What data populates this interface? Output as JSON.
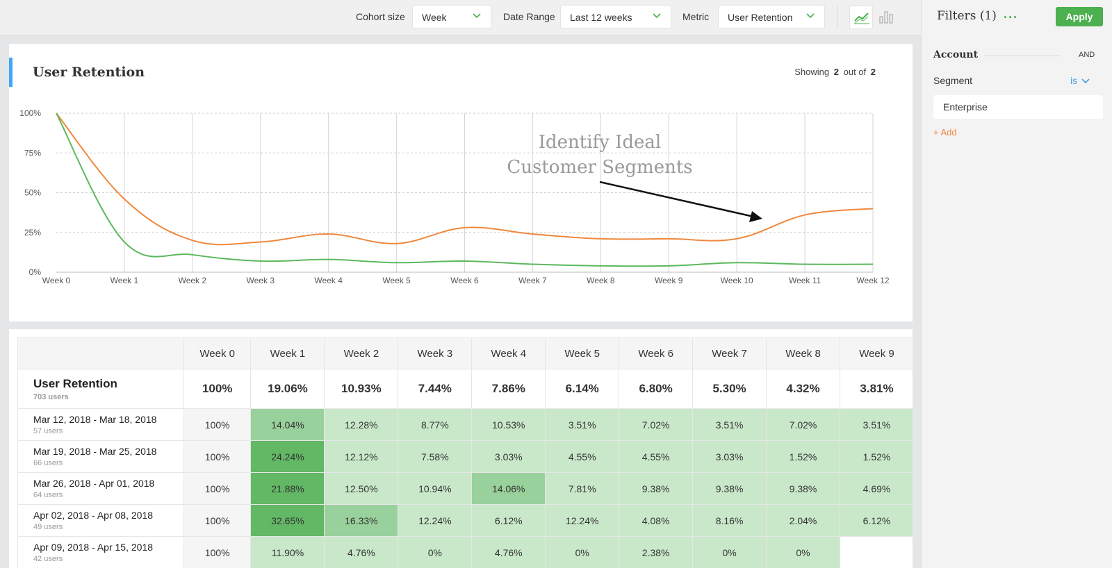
{
  "toolbar": {
    "cohort_label": "Cohort size",
    "cohort_value": "Week",
    "date_label": "Date Range",
    "date_value": "Last 12 weeks",
    "metric_label": "Metric",
    "metric_value": "User Retention",
    "accent_color": "#4caf50"
  },
  "filters": {
    "title": "Filters (1)",
    "more": "...",
    "apply": "Apply",
    "group": "Account",
    "conjunction": "AND",
    "field": "Segment",
    "operator": "is",
    "value": "Enterprise",
    "add": "+ Add"
  },
  "chart": {
    "title": "User Retention",
    "showing_prefix": "Showing",
    "showing_count": "2",
    "showing_mid": "out of",
    "showing_total": "2",
    "annotation_line1": "Identify Ideal",
    "annotation_line2": "Customer Segments"
  },
  "chart_data": {
    "type": "line",
    "categories": [
      "Week 0",
      "Week 1",
      "Week 2",
      "Week 3",
      "Week 4",
      "Week 5",
      "Week 6",
      "Week 7",
      "Week 8",
      "Week 9",
      "Week 10",
      "Week 11",
      "Week 12"
    ],
    "ylim": [
      0,
      100
    ],
    "yticks": [
      "0%",
      "25%",
      "50%",
      "75%",
      "100%"
    ],
    "grid": true,
    "series": [
      {
        "color": "#f0883e",
        "values": [
          100,
          46,
          20,
          19,
          24,
          18,
          28,
          24,
          21,
          21,
          21,
          36,
          40
        ]
      },
      {
        "color": "#5cb85c",
        "values": [
          100,
          19,
          11,
          7,
          8,
          6,
          7,
          5,
          4,
          4,
          6,
          5,
          5
        ]
      }
    ]
  },
  "table": {
    "headers": [
      "Week 0",
      "Week 1",
      "Week 2",
      "Week 3",
      "Week 4",
      "Week 5",
      "Week 6",
      "Week 7",
      "Week 8",
      "Week 9"
    ],
    "summary": {
      "name": "User Retention",
      "users": "703 users",
      "values": [
        "100%",
        "19.06%",
        "10.93%",
        "7.44%",
        "7.86%",
        "6.14%",
        "6.80%",
        "5.30%",
        "4.32%",
        "3.81%"
      ]
    },
    "rows": [
      {
        "name": "Mar 12, 2018 - Mar 18, 2018",
        "users": "57 users",
        "values": [
          "100%",
          "14.04%",
          "12.28%",
          "8.77%",
          "10.53%",
          "3.51%",
          "7.02%",
          "3.51%",
          "7.02%",
          "3.51%"
        ],
        "shades": [
          null,
          "#99d19c",
          "#c9e8ca",
          "#c9e8ca",
          "#c9e8ca",
          "#c9e8ca",
          "#c9e8ca",
          "#c9e8ca",
          "#c9e8ca",
          "#c9e8ca"
        ]
      },
      {
        "name": "Mar 19, 2018 - Mar 25, 2018",
        "users": "66 users",
        "values": [
          "100%",
          "24.24%",
          "12.12%",
          "7.58%",
          "3.03%",
          "4.55%",
          "4.55%",
          "3.03%",
          "1.52%",
          "1.52%"
        ],
        "shades": [
          null,
          "#62b865",
          "#c9e8ca",
          "#c9e8ca",
          "#c9e8ca",
          "#c9e8ca",
          "#c9e8ca",
          "#c9e8ca",
          "#c9e8ca",
          "#c9e8ca"
        ]
      },
      {
        "name": "Mar 26, 2018 - Apr 01, 2018",
        "users": "64 users",
        "values": [
          "100%",
          "21.88%",
          "12.50%",
          "10.94%",
          "14.06%",
          "7.81%",
          "9.38%",
          "9.38%",
          "9.38%",
          "4.69%"
        ],
        "shades": [
          null,
          "#62b865",
          "#c9e8ca",
          "#c9e8ca",
          "#99d19c",
          "#c9e8ca",
          "#c9e8ca",
          "#c9e8ca",
          "#c9e8ca",
          "#c9e8ca"
        ]
      },
      {
        "name": "Apr 02, 2018 - Apr 08, 2018",
        "users": "49 users",
        "values": [
          "100%",
          "32.65%",
          "16.33%",
          "12.24%",
          "6.12%",
          "12.24%",
          "4.08%",
          "8.16%",
          "2.04%",
          "6.12%"
        ],
        "shades": [
          null,
          "#62b865",
          "#99d19c",
          "#c9e8ca",
          "#c9e8ca",
          "#c9e8ca",
          "#c9e8ca",
          "#c9e8ca",
          "#c9e8ca",
          "#c9e8ca"
        ]
      },
      {
        "name": "Apr 09, 2018 - Apr 15, 2018",
        "users": "42 users",
        "values": [
          "100%",
          "11.90%",
          "4.76%",
          "0%",
          "4.76%",
          "0%",
          "2.38%",
          "0%",
          "0%",
          ""
        ],
        "shades": [
          null,
          "#c9e8ca",
          "#c9e8ca",
          "#c9e8ca",
          "#c9e8ca",
          "#c9e8ca",
          "#c9e8ca",
          "#c9e8ca",
          "#c9e8ca",
          null
        ]
      }
    ]
  }
}
